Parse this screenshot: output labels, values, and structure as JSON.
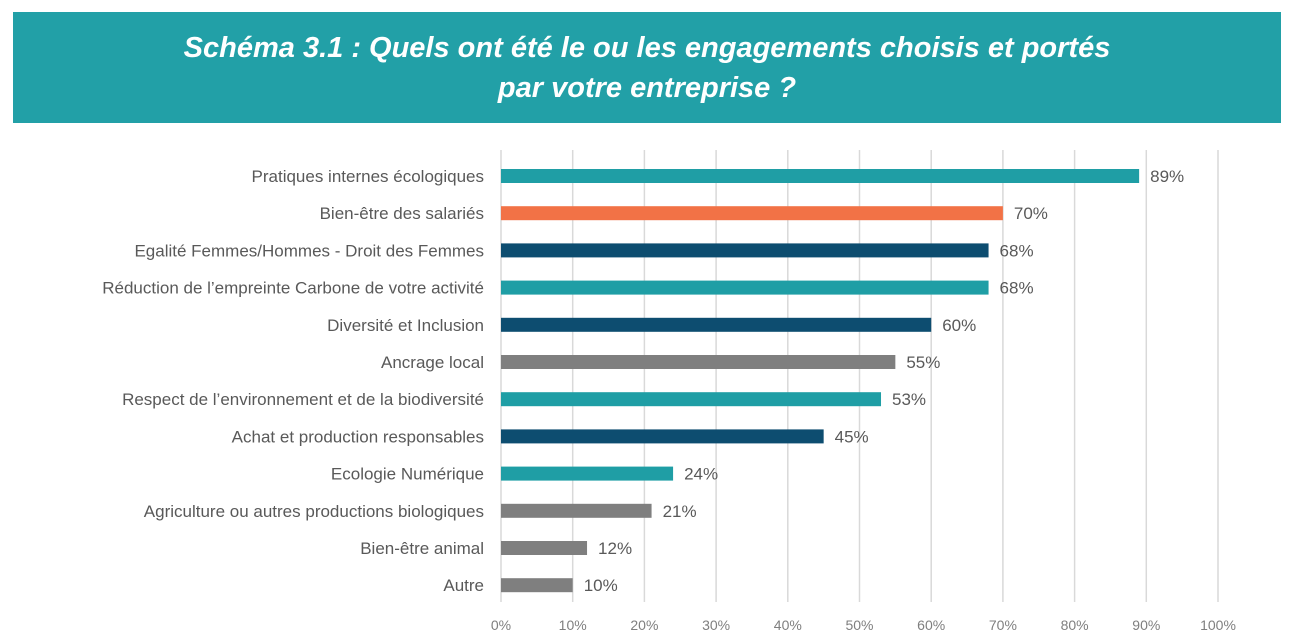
{
  "header": {
    "title_line1": "Schéma 3.1 : Quels ont été le ou les engagements choisis et portés",
    "title_line2": "par votre entreprise ?"
  },
  "chart_data": {
    "type": "bar",
    "orientation": "horizontal",
    "categories": [
      "Pratiques internes écologiques",
      "Bien-être des salariés",
      "Egalité Femmes/Hommes - Droit des Femmes",
      "Réduction de l’empreinte Carbone de votre activité",
      "Diversité et Inclusion",
      "Ancrage local",
      "Respect de l’environnement et de la biodiversité",
      "Achat et production responsables",
      "Ecologie Numérique",
      "Agriculture ou autres productions biologiques",
      "Bien-être animal",
      "Autre"
    ],
    "values": [
      89,
      70,
      68,
      68,
      60,
      55,
      53,
      45,
      24,
      21,
      12,
      10
    ],
    "value_labels": [
      "89%",
      "70%",
      "68%",
      "68%",
      "60%",
      "55%",
      "53%",
      "45%",
      "24%",
      "21%",
      "12%",
      "10%"
    ],
    "bar_colors": [
      "#1f9ea5",
      "#f27246",
      "#0d4d70",
      "#1f9ea5",
      "#0d4d70",
      "#7f7f7f",
      "#1f9ea5",
      "#0d4d70",
      "#1f9ea5",
      "#7f7f7f",
      "#7f7f7f",
      "#7f7f7f"
    ],
    "x_ticks": [
      "0%",
      "10%",
      "20%",
      "30%",
      "40%",
      "50%",
      "60%",
      "70%",
      "80%",
      "90%",
      "100%"
    ],
    "xlim": [
      0,
      100
    ],
    "grid": true,
    "legend": "none"
  },
  "colors": {
    "header_background": "#22a0a7",
    "gridline": "#d9d9d9",
    "text": "#595959"
  }
}
